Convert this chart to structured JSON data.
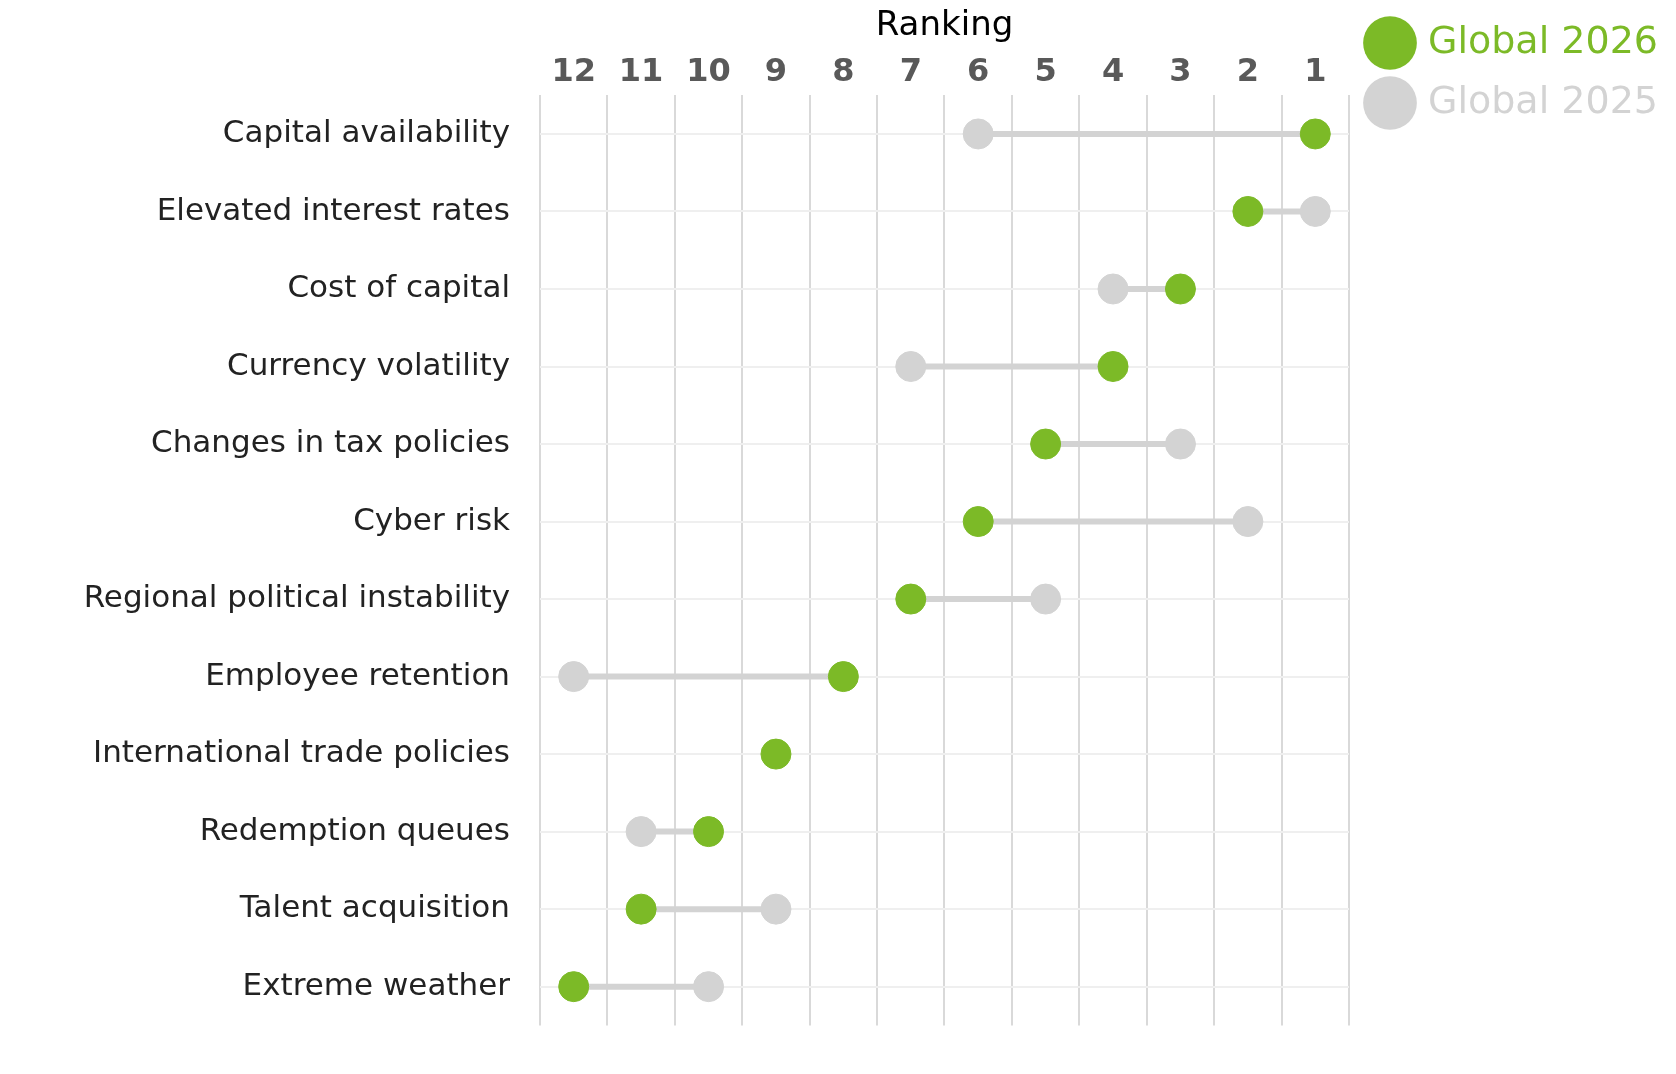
{
  "chart_data": {
    "type": "scatter",
    "orientation": "horizontal",
    "xlabel": "Ranking",
    "categories": [
      "Capital availability",
      "Elevated interest rates",
      "Cost of capital",
      "Currency volatility",
      "Changes in tax policies",
      "Cyber risk",
      "Regional political instability",
      "Employee retention",
      "International trade policies",
      "Redemption queues",
      "Talent acquisition",
      "Extreme weather"
    ],
    "series": [
      {
        "name": "Global 2025",
        "color": "#d3d3d3",
        "values": [
          6,
          1,
          4,
          7,
          3,
          2,
          5,
          12,
          null,
          11,
          9,
          10
        ]
      },
      {
        "name": "Global 2026",
        "color": "#7cba27",
        "values": [
          1,
          2,
          3,
          4,
          5,
          6,
          7,
          8,
          9,
          10,
          11,
          12
        ]
      }
    ],
    "xlim": [
      12.5,
      0.5
    ],
    "xticks": [
      {
        "value": 12.5,
        "label": null
      },
      12,
      {
        "value": 11.5,
        "label": null
      },
      11,
      {
        "value": 10.5,
        "label": null
      },
      10,
      {
        "value": 9.5,
        "label": null
      },
      9,
      {
        "value": 8.5,
        "label": null
      },
      8,
      {
        "value": 7.5,
        "label": null
      },
      7,
      {
        "value": 6.5,
        "label": null
      },
      6,
      {
        "value": 5.5,
        "label": null
      },
      5,
      {
        "value": 4.5,
        "label": null
      },
      4,
      {
        "value": 3.5,
        "label": null
      },
      3,
      {
        "value": 2.5,
        "label": null
      },
      2,
      {
        "value": 1.5,
        "label": null
      },
      1,
      {
        "value": 0.5,
        "label": null
      }
    ],
    "grid": true,
    "legend": "top right",
    "marker": "circle"
  }
}
